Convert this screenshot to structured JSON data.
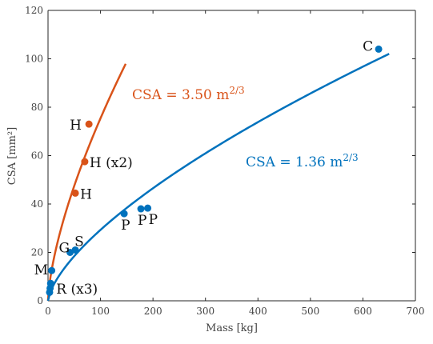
{
  "chart_data": {
    "type": "scatter",
    "xlabel": "Mass [kg]",
    "ylabel": "CSA [mm²]",
    "xlim": [
      0,
      700
    ],
    "ylim": [
      0,
      120
    ],
    "x_ticks": [
      0,
      100,
      200,
      300,
      400,
      500,
      600,
      700
    ],
    "y_ticks": [
      0,
      20,
      40,
      60,
      80,
      100,
      120
    ],
    "grid": false,
    "colors": {
      "orange": "#d95319",
      "blue": "#0072bd"
    },
    "fits": [
      {
        "label": "CSA = 3.50 m",
        "exponent": "2/3",
        "coefficient": 3.5,
        "x_range": [
          0,
          148
        ],
        "color": "#d95319"
      },
      {
        "label": "CSA = 1.36 m",
        "exponent": "2/3",
        "coefficient": 1.36,
        "x_range": [
          0,
          650
        ],
        "color": "#0072bd"
      }
    ],
    "series": [
      {
        "color": "#d95319",
        "points": [
          {
            "x": 78,
            "y": 73,
            "label": "H"
          },
          {
            "x": 70,
            "y": 57.5,
            "label": "H (x2)"
          },
          {
            "x": 52,
            "y": 44.5,
            "label": "H"
          }
        ]
      },
      {
        "color": "#0072bd",
        "points": [
          {
            "x": 630,
            "y": 104,
            "label": "C"
          },
          {
            "x": 145,
            "y": 36,
            "label": "P"
          },
          {
            "x": 177,
            "y": 38,
            "label": "P"
          },
          {
            "x": 190,
            "y": 38.3,
            "label": "P"
          },
          {
            "x": 42,
            "y": 20,
            "label": "G"
          },
          {
            "x": 52,
            "y": 21,
            "label": "S"
          },
          {
            "x": 7,
            "y": 12.5,
            "label": "M"
          },
          {
            "x": 5,
            "y": 7.2,
            "label": "R (x3)"
          },
          {
            "x": 4,
            "y": 5.2,
            "label": ""
          },
          {
            "x": 3,
            "y": 3.5,
            "label": ""
          }
        ]
      }
    ]
  }
}
